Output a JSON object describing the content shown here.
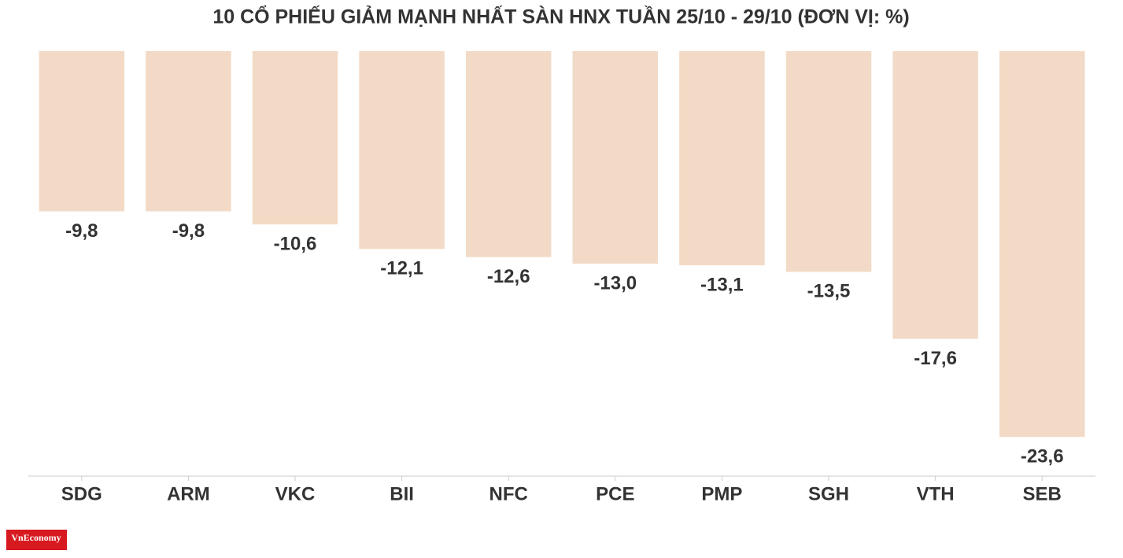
{
  "chart_data": {
    "type": "bar",
    "title": "10 CỔ PHIẾU GIẢM MẠNH NHẤT SÀN HNX TUẦN 25/10 - 29/10 (ĐƠN VỊ: %)",
    "categories": [
      "SDG",
      "ARM",
      "VKC",
      "BII",
      "NFC",
      "PCE",
      "PMP",
      "SGH",
      "VTH",
      "SEB"
    ],
    "values": [
      -9.8,
      -9.8,
      -10.6,
      -12.1,
      -12.6,
      -13.0,
      -13.1,
      -13.5,
      -17.6,
      -23.6
    ],
    "value_labels": [
      "-9,8",
      "-9,8",
      "-10,6",
      "-12,1",
      "-12,6",
      "-13,0",
      "-13,1",
      "-13,5",
      "-17,6",
      "-23,6"
    ],
    "color": "#f2dac6",
    "ylim": [
      -26,
      0
    ]
  },
  "logo": "VnEconomy"
}
